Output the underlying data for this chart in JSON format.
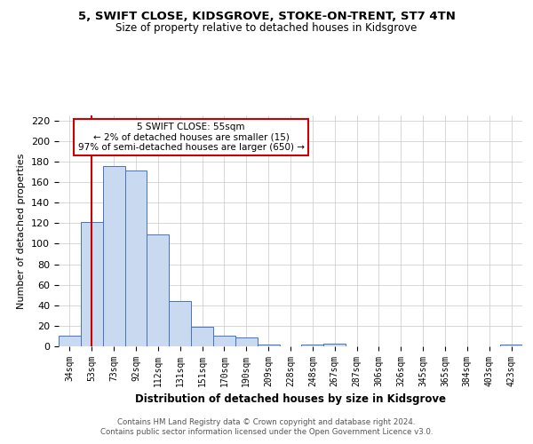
{
  "title": "5, SWIFT CLOSE, KIDSGROVE, STOKE-ON-TRENT, ST7 4TN",
  "subtitle": "Size of property relative to detached houses in Kidsgrove",
  "xlabel": "Distribution of detached houses by size in Kidsgrove",
  "ylabel": "Number of detached properties",
  "categories": [
    "34sqm",
    "53sqm",
    "73sqm",
    "92sqm",
    "112sqm",
    "131sqm",
    "151sqm",
    "170sqm",
    "190sqm",
    "209sqm",
    "228sqm",
    "248sqm",
    "267sqm",
    "287sqm",
    "306sqm",
    "326sqm",
    "345sqm",
    "365sqm",
    "384sqm",
    "403sqm",
    "423sqm"
  ],
  "values": [
    10,
    121,
    176,
    171,
    109,
    44,
    19,
    10,
    9,
    2,
    0,
    2,
    3,
    0,
    0,
    0,
    0,
    0,
    0,
    0,
    2
  ],
  "bar_color": "#c8d9f0",
  "bar_edge_color": "#4472c4",
  "vline_x": 1,
  "vline_color": "#cc0000",
  "annotation_title": "5 SWIFT CLOSE: 55sqm",
  "annotation_line1": "← 2% of detached houses are smaller (15)",
  "annotation_line2": "97% of semi-detached houses are larger (650) →",
  "annotation_box_color": "#ffffff",
  "annotation_box_edge": "#cc0000",
  "ylim": [
    0,
    225
  ],
  "yticks": [
    0,
    20,
    40,
    60,
    80,
    100,
    120,
    140,
    160,
    180,
    200,
    220
  ],
  "footer1": "Contains HM Land Registry data © Crown copyright and database right 2024.",
  "footer2": "Contains public sector information licensed under the Open Government Licence v3.0.",
  "bg_color": "#ffffff",
  "grid_color": "#c8c8c8"
}
